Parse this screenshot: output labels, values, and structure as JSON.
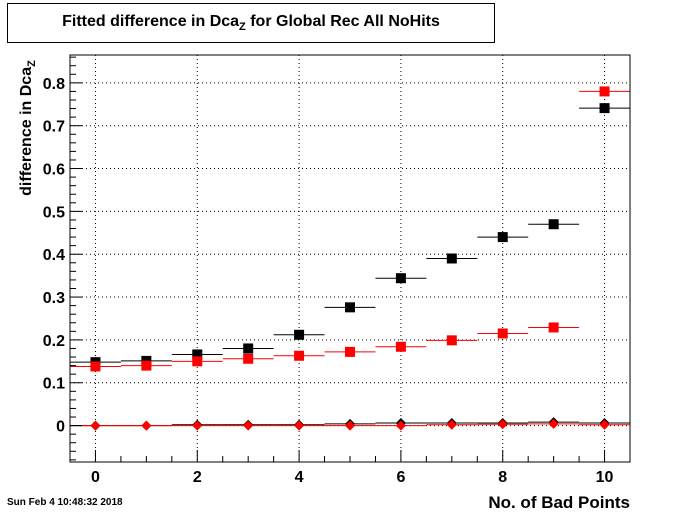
{
  "title": {
    "main": "Fitted difference in Dca",
    "sub": "Z",
    "rest": " for Global Rec All NoHits"
  },
  "ylabel": {
    "main": "difference in Dca",
    "sub": "Z"
  },
  "xlabel": "No. of Bad Points",
  "timestamp": "Sun Feb  4 10:48:32 2018",
  "colors": {
    "black": "#000000",
    "red": "#ff0000"
  },
  "chart_data": {
    "type": "scatter",
    "xlim": [
      -0.5,
      10.5
    ],
    "ylim": [
      -0.085,
      0.865
    ],
    "x_ticks": [
      0,
      2,
      4,
      6,
      8,
      10
    ],
    "y_ticks": [
      0,
      0.1,
      0.2,
      0.3,
      0.4,
      0.5,
      0.6,
      0.7,
      0.8
    ],
    "y_tick_labels": [
      "0",
      "0.1",
      "0.2",
      "0.3",
      "0.4",
      "0.5",
      "0.6",
      "0.7",
      "0.8"
    ],
    "grid": true,
    "series": [
      {
        "marker": "square",
        "color": "#000000",
        "x": [
          0,
          1,
          2,
          3,
          4,
          5,
          6,
          7,
          8,
          9,
          10
        ],
        "y": [
          0.148,
          0.151,
          0.166,
          0.18,
          0.212,
          0.276,
          0.344,
          0.39,
          0.44,
          0.47,
          0.741
        ]
      },
      {
        "marker": "square",
        "color": "#ff0000",
        "x": [
          0,
          1,
          2,
          3,
          4,
          5,
          6,
          7,
          8,
          9,
          10
        ],
        "y": [
          0.138,
          0.14,
          0.15,
          0.156,
          0.163,
          0.172,
          0.184,
          0.199,
          0.215,
          0.229,
          0.78
        ]
      },
      {
        "marker": "diamond",
        "color": "#000000",
        "x": [
          0,
          1,
          2,
          3,
          4,
          5,
          6,
          7,
          8,
          9,
          10
        ],
        "y": [
          0.0,
          0.0,
          0.002,
          0.002,
          0.002,
          0.004,
          0.006,
          0.006,
          0.006,
          0.008,
          0.006
        ]
      },
      {
        "marker": "diamond",
        "color": "#ff0000",
        "x": [
          0,
          1,
          2,
          3,
          4,
          5,
          6,
          7,
          8,
          9,
          10
        ],
        "y": [
          0.0,
          0.0,
          0.0,
          0.0,
          0.0,
          0.0,
          0.0,
          0.002,
          0.003,
          0.004,
          0.002
        ]
      }
    ]
  }
}
